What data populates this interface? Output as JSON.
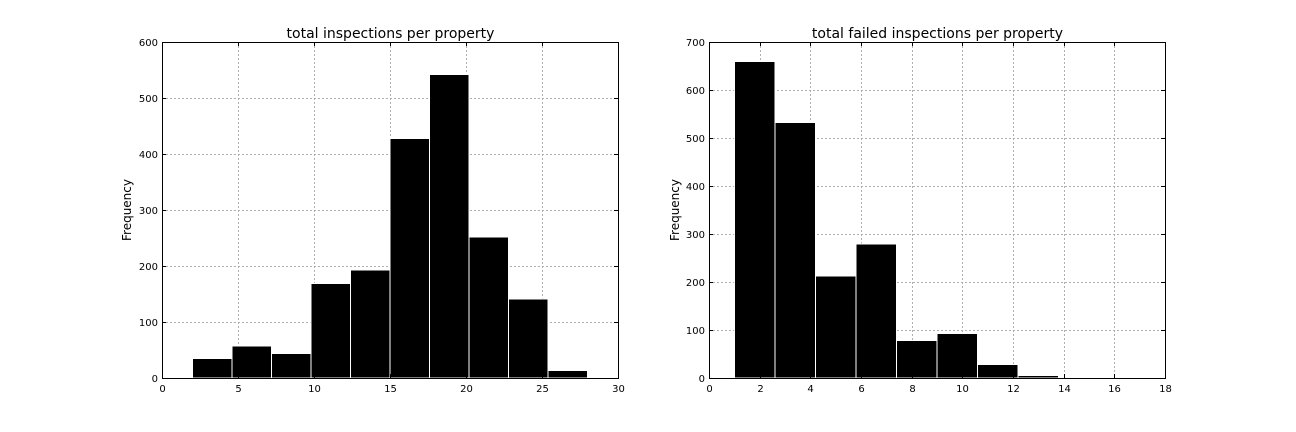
{
  "colors": {
    "bar_fill": "#000000",
    "bar_edge": "#ffffff",
    "grid": "#b0b0b0",
    "background": "#ffffff"
  },
  "chart_data": [
    {
      "type": "bar",
      "title": "total inspections per property",
      "xlabel": "",
      "ylabel": "Frequency",
      "xlim": [
        0,
        30
      ],
      "ylim": [
        0,
        600
      ],
      "xticks": [
        0,
        5,
        10,
        15,
        20,
        25,
        30
      ],
      "yticks": [
        0,
        100,
        200,
        300,
        400,
        500,
        600
      ],
      "grid": true,
      "bins": [
        {
          "x0": 2.0,
          "x1": 4.6,
          "value": 35
        },
        {
          "x0": 4.6,
          "x1": 7.2,
          "value": 57
        },
        {
          "x0": 7.2,
          "x1": 9.8,
          "value": 44
        },
        {
          "x0": 9.8,
          "x1": 12.4,
          "value": 169
        },
        {
          "x0": 12.4,
          "x1": 15.0,
          "value": 193
        },
        {
          "x0": 15.0,
          "x1": 17.6,
          "value": 428
        },
        {
          "x0": 17.6,
          "x1": 20.2,
          "value": 542
        },
        {
          "x0": 20.2,
          "x1": 22.8,
          "value": 252
        },
        {
          "x0": 22.8,
          "x1": 25.4,
          "value": 141
        },
        {
          "x0": 25.4,
          "x1": 28.0,
          "value": 13
        }
      ]
    },
    {
      "type": "bar",
      "title": "total failed inspections per property",
      "xlabel": "",
      "ylabel": "Frequency",
      "xlim": [
        0,
        18
      ],
      "ylim": [
        0,
        700
      ],
      "xticks": [
        0,
        2,
        4,
        6,
        8,
        10,
        12,
        14,
        16,
        18
      ],
      "yticks": [
        0,
        100,
        200,
        300,
        400,
        500,
        600,
        700
      ],
      "grid": true,
      "bins": [
        {
          "x0": 1.0,
          "x1": 2.6,
          "value": 659
        },
        {
          "x0": 2.6,
          "x1": 4.2,
          "value": 532
        },
        {
          "x0": 4.2,
          "x1": 5.8,
          "value": 212
        },
        {
          "x0": 5.8,
          "x1": 7.4,
          "value": 279
        },
        {
          "x0": 7.4,
          "x1": 9.0,
          "value": 78
        },
        {
          "x0": 9.0,
          "x1": 10.6,
          "value": 93
        },
        {
          "x0": 10.6,
          "x1": 12.2,
          "value": 28
        },
        {
          "x0": 12.2,
          "x1": 13.8,
          "value": 5
        },
        {
          "x0": 13.8,
          "x1": 15.4,
          "value": 2
        },
        {
          "x0": 15.4,
          "x1": 17.0,
          "value": 0
        }
      ]
    }
  ]
}
